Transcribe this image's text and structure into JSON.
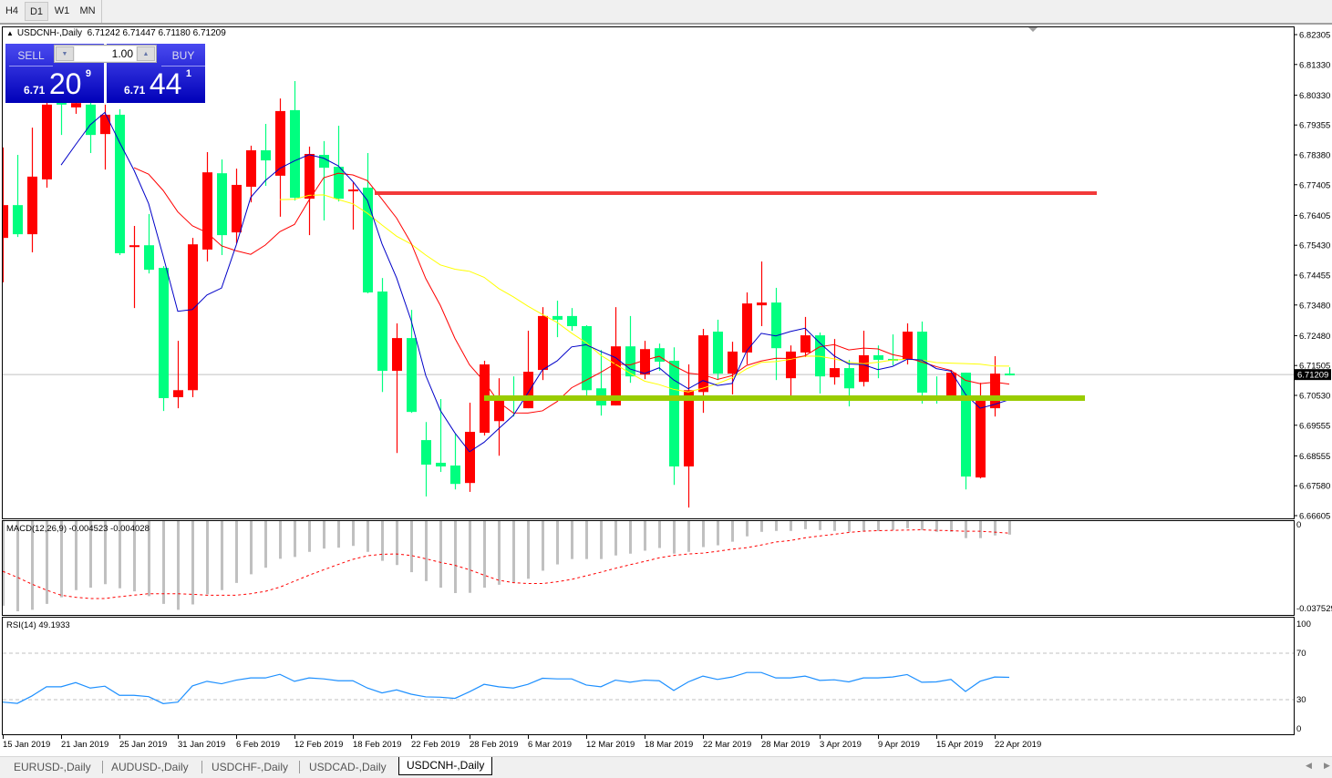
{
  "toolbar": {
    "timeframes": [
      "H4",
      "D1",
      "W1",
      "MN"
    ],
    "active": "D1"
  },
  "window": {
    "symbol_title": "USDCNH-,Daily",
    "ohlc_text": "6.71242 6.71447 6.71180 6.71209"
  },
  "trade_panel": {
    "sell_label": "SELL",
    "buy_label": "BUY",
    "lot_size": "1.00",
    "sell_price": {
      "prefix": "6.71",
      "big": "20",
      "sup": "9"
    },
    "buy_price": {
      "prefix": "6.71",
      "big": "44",
      "sup": "1"
    }
  },
  "tabs": [
    "EURUSD-,Daily",
    "AUDUSD-,Daily",
    "USDCHF-,Daily",
    "USDCAD-,Daily",
    "USDCNH-,Daily"
  ],
  "active_tab": "USDCNH-,Daily",
  "colors": {
    "bull": "#ff0000",
    "bear": "#00ff7f",
    "ma_fast": "#0000c8",
    "ma_mid": "#ff0000",
    "ma_slow": "#ffff00",
    "resistance": "#f23a3a",
    "support": "#99cc00",
    "macd_hist": "#c0c0c0",
    "macd_signal": "#ff0000",
    "rsi": "#1e90ff"
  },
  "chart_data": [
    {
      "type": "candlestick",
      "title": "USDCNH-,Daily",
      "current_price": "6.71209",
      "y_ticks": [
        "6.82305",
        "6.81330",
        "6.80330",
        "6.79355",
        "6.78380",
        "6.77405",
        "6.76405",
        "6.75430",
        "6.74455",
        "6.73480",
        "6.72480",
        "6.71505",
        "6.70530",
        "6.69555",
        "6.68555",
        "6.67580",
        "6.66605"
      ],
      "ylim": [
        6.66605,
        6.82305
      ],
      "x_ticks": [
        {
          "bar": 0,
          "label": "15 Jan 2019"
        },
        {
          "bar": 4,
          "label": "21 Jan 2019"
        },
        {
          "bar": 8,
          "label": "25 Jan 2019"
        },
        {
          "bar": 12,
          "label": "31 Jan 2019"
        },
        {
          "bar": 16,
          "label": "6 Feb 2019"
        },
        {
          "bar": 20,
          "label": "12 Feb 2019"
        },
        {
          "bar": 24,
          "label": "18 Feb 2019"
        },
        {
          "bar": 28,
          "label": "22 Feb 2019"
        },
        {
          "bar": 32,
          "label": "28 Feb 2019"
        },
        {
          "bar": 36,
          "label": "6 Mar 2019"
        },
        {
          "bar": 40,
          "label": "12 Mar 2019"
        },
        {
          "bar": 44,
          "label": "18 Mar 2019"
        },
        {
          "bar": 48,
          "label": "22 Mar 2019"
        },
        {
          "bar": 52,
          "label": "28 Mar 2019"
        },
        {
          "bar": 56,
          "label": "3 Apr 2019"
        },
        {
          "bar": 60,
          "label": "9 Apr 2019"
        },
        {
          "bar": 64,
          "label": "15 Apr 2019"
        },
        {
          "bar": 68,
          "label": "22 Apr 2019"
        }
      ],
      "candles_ohlc": [
        [
          6.7567,
          6.7862,
          6.7422,
          6.7674
        ],
        [
          6.7674,
          6.7838,
          6.757,
          6.7579
        ],
        [
          6.7579,
          6.7927,
          6.752,
          6.7767
        ],
        [
          6.7758,
          6.8016,
          6.7731,
          6.8002
        ],
        [
          6.8046,
          6.8061,
          6.7903,
          6.8002
        ],
        [
          6.7993,
          6.8022,
          6.7972,
          6.8007
        ],
        [
          6.8002,
          6.8022,
          6.7844,
          6.7903
        ],
        [
          6.7906,
          6.8002,
          6.779,
          6.7969
        ],
        [
          6.7969,
          6.7987,
          6.7511,
          6.7517
        ],
        [
          6.7541,
          6.7606,
          6.7338,
          6.7543
        ],
        [
          6.7543,
          6.7645,
          6.7451,
          6.7463
        ],
        [
          6.7469,
          6.7475,
          6.7002,
          6.7044
        ],
        [
          6.7047,
          6.7231,
          6.7011,
          6.707
        ],
        [
          6.707,
          6.7567,
          6.7047,
          6.7546
        ],
        [
          6.7529,
          6.7847,
          6.749,
          6.7781
        ],
        [
          6.7778,
          6.7823,
          6.7511,
          6.7576
        ],
        [
          6.7585,
          6.7793,
          6.7549,
          6.774
        ],
        [
          6.7734,
          6.7868,
          6.7683,
          6.7853
        ],
        [
          6.7853,
          6.7939,
          6.7737,
          6.782
        ],
        [
          6.777,
          6.8022,
          6.7636,
          6.7981
        ],
        [
          6.7984,
          6.8079,
          6.7689,
          6.7698
        ],
        [
          6.7695,
          6.7865,
          6.7576,
          6.7841
        ],
        [
          6.7838,
          6.7883,
          6.7624,
          6.7796
        ],
        [
          6.7799,
          6.7933,
          6.7686,
          6.7695
        ],
        [
          6.7719,
          6.7749,
          6.7594,
          6.7725
        ],
        [
          6.7731,
          6.7844,
          6.7386,
          6.7389
        ],
        [
          6.7392,
          6.7436,
          6.7064,
          6.7133
        ],
        [
          6.7133,
          6.7288,
          6.6865,
          6.724
        ],
        [
          6.724,
          6.7332,
          6.6996,
          6.6999
        ],
        [
          6.6907,
          6.6966,
          6.6723,
          6.6827
        ],
        [
          6.6833,
          6.7041,
          6.6803,
          6.6821
        ],
        [
          6.6824,
          6.6928,
          6.6746,
          6.6764
        ],
        [
          6.6767,
          6.7029,
          6.6738,
          6.6934
        ],
        [
          6.6931,
          6.7166,
          6.6922,
          6.7154
        ],
        [
          6.6969,
          6.7109,
          6.6856,
          6.705
        ],
        [
          6.7044,
          6.7115,
          6.6984,
          6.7035
        ],
        [
          6.7011,
          6.7264,
          6.7011,
          6.713
        ],
        [
          6.7136,
          6.7341,
          6.7103,
          6.7312
        ],
        [
          6.7312,
          6.7362,
          6.7243,
          6.73
        ],
        [
          6.7312,
          6.7338,
          6.7264,
          6.7279
        ],
        [
          6.7279,
          6.7282,
          6.705,
          6.707
        ],
        [
          6.7076,
          6.7201,
          6.6987,
          6.702
        ],
        [
          6.702,
          6.7341,
          6.702,
          6.7213
        ],
        [
          6.7213,
          6.7312,
          6.7094,
          6.7115
        ],
        [
          6.7121,
          6.7231,
          6.7106,
          6.7204
        ],
        [
          6.7207,
          6.7222,
          6.7133,
          6.7163
        ],
        [
          6.7166,
          6.721,
          6.6761,
          6.6821
        ],
        [
          6.6821,
          6.7154,
          6.6687,
          6.707
        ],
        [
          6.7064,
          6.727,
          6.6996,
          6.7249
        ],
        [
          6.7261,
          6.73,
          6.7103,
          6.7124
        ],
        [
          6.7124,
          6.7228,
          6.7056,
          6.7196
        ],
        [
          6.7193,
          6.7389,
          6.7154,
          6.7353
        ],
        [
          6.7347,
          6.749,
          6.7279,
          6.7356
        ],
        [
          6.7356,
          6.7404,
          6.7103,
          6.7207
        ],
        [
          6.7109,
          6.7216,
          6.7047,
          6.7196
        ],
        [
          6.7193,
          6.7309,
          6.7178,
          6.7249
        ],
        [
          6.7249,
          6.7258,
          6.7059,
          6.7115
        ],
        [
          6.7112,
          6.7237,
          6.7088,
          6.7142
        ],
        [
          6.7142,
          6.7169,
          6.7017,
          6.7076
        ],
        [
          6.7097,
          6.7264,
          6.7082,
          6.7184
        ],
        [
          6.7184,
          6.7216,
          6.7109,
          6.7169
        ],
        [
          6.7172,
          6.7252,
          6.7151,
          6.7166
        ],
        [
          6.7169,
          6.7288,
          6.7154,
          6.7261
        ],
        [
          6.7261,
          6.7294,
          6.7026,
          6.7062
        ],
        [
          6.705,
          6.7115,
          6.7026,
          6.7044
        ],
        [
          6.7044,
          6.7136,
          6.7044,
          6.7127
        ],
        [
          6.7127,
          6.7127,
          6.6746,
          6.6788
        ],
        [
          6.6785,
          6.7094,
          6.6782,
          6.7035
        ],
        [
          6.7011,
          6.7181,
          6.6984,
          6.7124
        ],
        [
          6.71242,
          6.71447,
          6.7118,
          6.71209
        ]
      ],
      "horizontal_lines": [
        {
          "role": "resistance",
          "price": 6.7713,
          "from_bar": 25.5
        },
        {
          "role": "support",
          "price": 6.7044,
          "from_bar": 33
        }
      ],
      "overlays": [
        "moving average (blue)",
        "moving average (red)",
        "moving average (yellow)"
      ]
    },
    {
      "type": "bar+line",
      "title": "MACD(12,26,9) -0.004523 -0.004028",
      "y_ticks": [
        "0",
        "-0.037529"
      ],
      "ylim": [
        -0.037529,
        0
      ],
      "histogram": [
        -0.0283,
        -0.0302,
        -0.0297,
        -0.0277,
        -0.0255,
        -0.0231,
        -0.0223,
        -0.0211,
        -0.0225,
        -0.0235,
        -0.0251,
        -0.0277,
        -0.0297,
        -0.0279,
        -0.0245,
        -0.0231,
        -0.0207,
        -0.0178,
        -0.0156,
        -0.0126,
        -0.012,
        -0.0103,
        -0.0092,
        -0.0089,
        -0.0083,
        -0.0103,
        -0.0133,
        -0.0147,
        -0.0171,
        -0.0201,
        -0.0223,
        -0.0241,
        -0.024,
        -0.0223,
        -0.0213,
        -0.0205,
        -0.0193,
        -0.0166,
        -0.0145,
        -0.0127,
        -0.0127,
        -0.0127,
        -0.0115,
        -0.0109,
        -0.0099,
        -0.009,
        -0.0109,
        -0.0103,
        -0.0087,
        -0.0081,
        -0.0069,
        -0.0051,
        -0.0036,
        -0.0033,
        -0.0033,
        -0.0027,
        -0.003,
        -0.0033,
        -0.0036,
        -0.0033,
        -0.0033,
        -0.003,
        -0.0024,
        -0.003,
        -0.0036,
        -0.0036,
        -0.0057,
        -0.0057,
        -0.0048,
        -0.004523
      ],
      "signal": [
        -0.0168,
        -0.0188,
        -0.0211,
        -0.0231,
        -0.0248,
        -0.0255,
        -0.0259,
        -0.0259,
        -0.0253,
        -0.0248,
        -0.0243,
        -0.0243,
        -0.0243,
        -0.0245,
        -0.0248,
        -0.0248,
        -0.0248,
        -0.0243,
        -0.0235,
        -0.0221,
        -0.0201,
        -0.0181,
        -0.0163,
        -0.0145,
        -0.0128,
        -0.0116,
        -0.0111,
        -0.011,
        -0.0115,
        -0.0126,
        -0.0138,
        -0.0148,
        -0.0163,
        -0.0181,
        -0.0198,
        -0.0206,
        -0.0209,
        -0.0209,
        -0.0203,
        -0.0195,
        -0.0183,
        -0.0171,
        -0.0158,
        -0.0146,
        -0.0135,
        -0.0123,
        -0.0115,
        -0.011,
        -0.0107,
        -0.0101,
        -0.0094,
        -0.0089,
        -0.008,
        -0.007,
        -0.0065,
        -0.0056,
        -0.005,
        -0.0044,
        -0.0038,
        -0.0034,
        -0.0032,
        -0.0031,
        -0.003,
        -0.0029,
        -0.0031,
        -0.0032,
        -0.0034,
        -0.0034,
        -0.0037,
        -0.004028
      ]
    },
    {
      "type": "line",
      "title": "RSI(14) 49.1933",
      "y_ticks": [
        "100",
        "70",
        "30",
        "0"
      ],
      "levels": [
        70,
        30
      ],
      "values": [
        27.9,
        26.8,
        33.2,
        41.1,
        41.1,
        44.7,
        40.0,
        41.6,
        33.7,
        33.7,
        32.6,
        26.6,
        27.9,
        41.8,
        45.8,
        43.7,
        46.8,
        48.7,
        48.7,
        51.8,
        45.8,
        48.7,
        47.9,
        46.3,
        46.3,
        40.0,
        35.8,
        38.4,
        34.7,
        32.4,
        32.1,
        31.1,
        36.8,
        43.2,
        41.1,
        40.0,
        43.2,
        48.4,
        47.9,
        47.9,
        42.6,
        41.1,
        46.8,
        45.0,
        46.8,
        46.3,
        37.9,
        45.3,
        50.3,
        47.4,
        49.5,
        53.4,
        53.4,
        48.7,
        48.7,
        50.3,
        46.6,
        47.1,
        45.3,
        48.7,
        48.7,
        49.5,
        51.6,
        45.0,
        45.3,
        47.4,
        37.1,
        45.8,
        49.5,
        49.1933
      ]
    }
  ]
}
